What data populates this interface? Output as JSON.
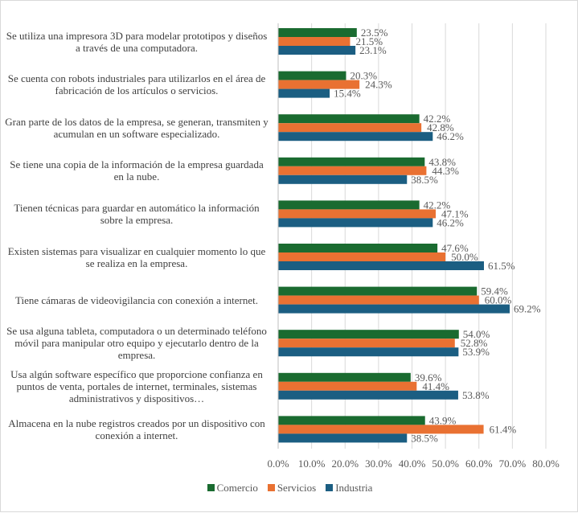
{
  "chart_data": {
    "type": "bar",
    "orientation": "horizontal",
    "categories": [
      "Se utiliza una impresora 3D para modelar prototipos y diseños a través de una computadora.",
      "Se cuenta con robots industriales para utilizarlos en el área de fabricación de los artículos o servicios.",
      "Gran parte de los datos de la empresa, se generan, transmiten y acumulan en un software especializado.",
      "Se tiene una copia de la información de la empresa guardada en la nube.",
      "Tienen técnicas para guardar en automático la información sobre la empresa.",
      "Existen sistemas para visualizar en cualquier momento lo que se realiza en la empresa.",
      "Tiene cámaras de videovigilancia con conexión a internet.",
      "Se usa alguna tableta, computadora o un determinado teléfono móvil para manipular otro equipo y ejecutarlo dentro de la empresa.",
      "Usa algún software específico que proporcione confianza en puntos de venta, portales de internet, terminales, sistemas administrativos y dispositivos…",
      "Almacena en la nube registros creados por un dispositivo con conexión a internet."
    ],
    "series": [
      {
        "name": "Comercio",
        "color": "#1a6b30",
        "values": [
          23.5,
          20.3,
          42.2,
          43.8,
          42.2,
          47.6,
          59.4,
          54.0,
          39.6,
          43.9
        ]
      },
      {
        "name": "Servicios",
        "color": "#e97132",
        "values": [
          21.5,
          24.3,
          42.8,
          44.3,
          47.1,
          50.0,
          60.0,
          52.8,
          41.4,
          61.4
        ]
      },
      {
        "name": "Industria",
        "color": "#1b5e82",
        "values": [
          23.1,
          15.4,
          46.2,
          38.5,
          46.2,
          61.5,
          69.2,
          53.9,
          53.8,
          38.5
        ]
      }
    ],
    "xlim": [
      0,
      80
    ],
    "xticks": [
      "0.0%",
      "10.0%",
      "20.0%",
      "30.0%",
      "40.0%",
      "50.0%",
      "60.0%",
      "70.0%",
      "80.0%"
    ],
    "grid": true,
    "legend": "bottom"
  }
}
